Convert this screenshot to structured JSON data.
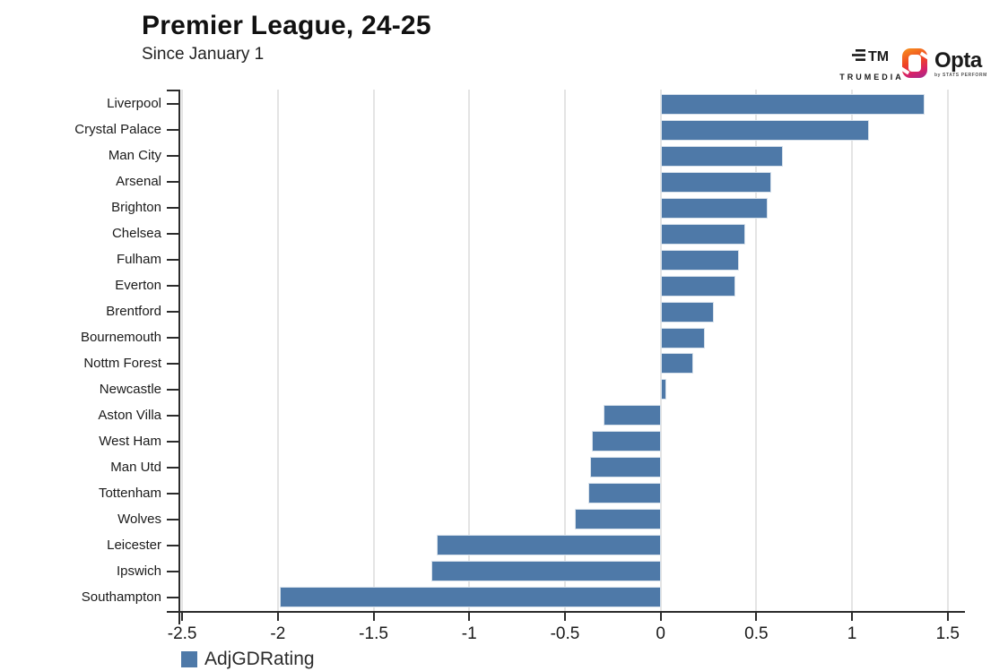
{
  "header": {
    "title": "Premier League, 24-25",
    "subtitle": "Since January 1"
  },
  "branding": {
    "trumedia": "TRUMEDIA",
    "trumedia_mark": "TM",
    "opta": "Opta",
    "opta_sub": "by STATS PERFORM"
  },
  "legend": {
    "label": "AdjGDRating",
    "color": "#4e79a8"
  },
  "chart_data": {
    "type": "bar",
    "orientation": "horizontal",
    "title": "Premier League, 24-25",
    "subtitle": "Since January 1",
    "series_name": "AdjGDRating",
    "categories": [
      "Liverpool",
      "Crystal Palace",
      "Man City",
      "Arsenal",
      "Brighton",
      "Chelsea",
      "Fulham",
      "Everton",
      "Brentford",
      "Bournemouth",
      "Nottm Forest",
      "Newcastle",
      "Aston Villa",
      "West Ham",
      "Man Utd",
      "Tottenham",
      "Wolves",
      "Leicester",
      "Ipswich",
      "Southampton"
    ],
    "values": [
      1.38,
      1.09,
      0.64,
      0.58,
      0.56,
      0.44,
      0.41,
      0.39,
      0.28,
      0.23,
      0.17,
      0.03,
      -0.3,
      -0.36,
      -0.37,
      -0.38,
      -0.45,
      -1.17,
      -1.2,
      -1.99
    ],
    "xticks": [
      -2.5,
      -2,
      -1.5,
      -1,
      -0.5,
      0,
      0.5,
      1,
      1.5
    ],
    "xtick_labels": [
      "-2.5",
      "-2",
      "-1.5",
      "-1",
      "-0.5",
      "0",
      "0.5",
      "1",
      "1.5"
    ],
    "xlim": [
      -2.51,
      1.59
    ],
    "xlabel": "",
    "ylabel": "",
    "grid": true,
    "bar_color": "#4e79a8",
    "legend_position": "bottom-left"
  }
}
